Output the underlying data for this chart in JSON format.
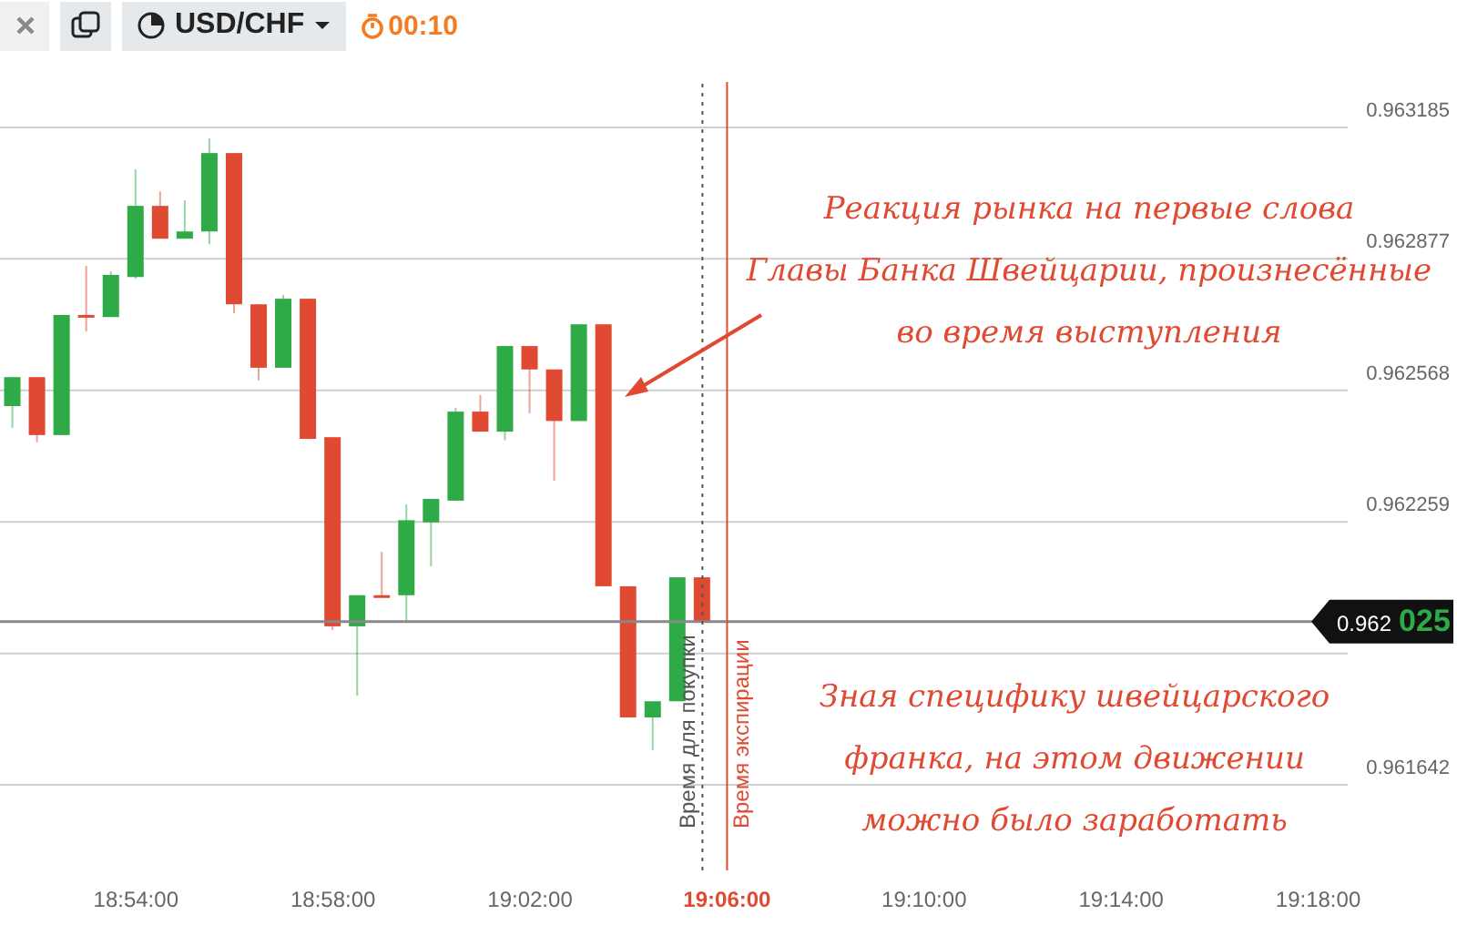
{
  "chart_data": {
    "type": "candlestick",
    "title": "USD/CHF",
    "subtitle": "00:10",
    "x": [
      18.858333,
      18.866667,
      18.875,
      18.883333,
      18.891667,
      18.9,
      18.908333,
      18.916667,
      18.925,
      18.933333,
      18.941667,
      18.95,
      18.958333,
      18.966667,
      18.975,
      18.983333,
      18.991667,
      19.0,
      19.008333,
      19.016667,
      19.025,
      19.033333,
      19.041667,
      19.05,
      19.058333,
      19.066667,
      19.075,
      19.083333,
      19.091667
    ],
    "ohlc": [
      [
        0.962531,
        0.962599,
        0.96248,
        0.962599
      ],
      [
        0.962599,
        0.962599,
        0.962446,
        0.962463
      ],
      [
        0.962463,
        0.962745,
        0.962463,
        0.962745
      ],
      [
        0.962745,
        0.96286,
        0.962706,
        0.962744
      ],
      [
        0.96274,
        0.962847,
        0.96274,
        0.962839
      ],
      [
        0.962834,
        0.963087,
        0.96283,
        0.963001
      ],
      [
        0.963001,
        0.963035,
        0.962924,
        0.962924
      ],
      [
        0.962924,
        0.963014,
        0.962924,
        0.962941
      ],
      [
        0.962941,
        0.963159,
        0.962911,
        0.963125
      ],
      [
        0.963125,
        0.963125,
        0.962749,
        0.96277
      ],
      [
        0.96277,
        0.96277,
        0.962591,
        0.962621
      ],
      [
        0.962621,
        0.962792,
        0.962621,
        0.962783
      ],
      [
        0.962783,
        0.962783,
        0.962454,
        0.962454
      ],
      [
        0.962458,
        0.962458,
        0.962005,
        0.962014
      ],
      [
        0.962014,
        0.962087,
        0.961851,
        0.962087
      ],
      [
        0.962087,
        0.962189,
        0.962086,
        0.962086
      ],
      [
        0.962087,
        0.9623,
        0.962027,
        0.962263
      ],
      [
        0.962258,
        0.962313,
        0.962155,
        0.962313
      ],
      [
        0.962309,
        0.962527,
        0.962309,
        0.962518
      ],
      [
        0.962518,
        0.962557,
        0.962471,
        0.962471
      ],
      [
        0.962471,
        0.962672,
        0.962451,
        0.962672
      ],
      [
        0.962672,
        0.962672,
        0.962514,
        0.962617
      ],
      [
        0.962617,
        0.962617,
        0.962356,
        0.962496
      ],
      [
        0.962496,
        0.962723,
        0.962496,
        0.962723
      ],
      [
        0.962723,
        0.962723,
        0.962108,
        0.962108
      ],
      [
        0.962108,
        0.962108,
        0.9618,
        0.9618
      ],
      [
        0.9618,
        0.961838,
        0.961723,
        0.961838
      ],
      [
        0.961838,
        0.962129,
        0.961838,
        0.962129
      ],
      [
        0.962129,
        0.962129,
        0.962025,
        0.962025
      ]
    ],
    "colors": [
      "#2eaa46",
      "#e04a32",
      "#2eaa46",
      "#e04a32",
      "#2eaa46",
      "#2eaa46",
      "#e04a32",
      "#2eaa46",
      "#2eaa46",
      "#e04a32",
      "#e04a32",
      "#2eaa46",
      "#e04a32",
      "#e04a32",
      "#2eaa46",
      "#e04a32",
      "#2eaa46",
      "#2eaa46",
      "#2eaa46",
      "#e04a32",
      "#2eaa46",
      "#e04a32",
      "#e04a32",
      "#2eaa46",
      "#e04a32",
      "#e04a32",
      "#2eaa46",
      "#2eaa46",
      "#e04a32"
    ],
    "xlim": [
      18.854,
      19.31
    ],
    "xticks": [
      {
        "value": 18.9,
        "label": "18:54:00"
      },
      {
        "value": 18.966667,
        "label": "18:58:00"
      },
      {
        "value": 19.033333,
        "label": "19:02:00"
      },
      {
        "value": 19.1,
        "label": "19:06:00"
      },
      {
        "value": 19.166667,
        "label": "19:10:00"
      },
      {
        "value": 19.233333,
        "label": "19:14:00"
      },
      {
        "value": 19.3,
        "label": "19:18:00"
      }
    ],
    "ylim": [
      0.961441,
      0.963292
    ],
    "yticks": [
      0.961642,
      {
        "value": 0.96195,
        "label": null
      },
      0.962259,
      0.962568,
      0.962877,
      0.963185
    ],
    "grid": "y",
    "ref_lines": [
      {
        "axis": "y",
        "value": 0.962025,
        "label": "0.962 025",
        "color": "#888888"
      },
      {
        "axis": "x",
        "value": 19.091667,
        "label": "Время для покупки",
        "color": "#555555",
        "line_style": "dotted"
      },
      {
        "axis": "x",
        "value": 19.1,
        "label": "Время экспирации",
        "color": "#e04a32",
        "line_style": "solid"
      }
    ],
    "annotations": [
      "Реакция рынка на первые слова\nГлавы Банка Швейцарии, произнесённые\nво время выступления",
      "Зная специфику швейцарского\nфранка, на этом движении\nможно было заработать"
    ]
  }
}
